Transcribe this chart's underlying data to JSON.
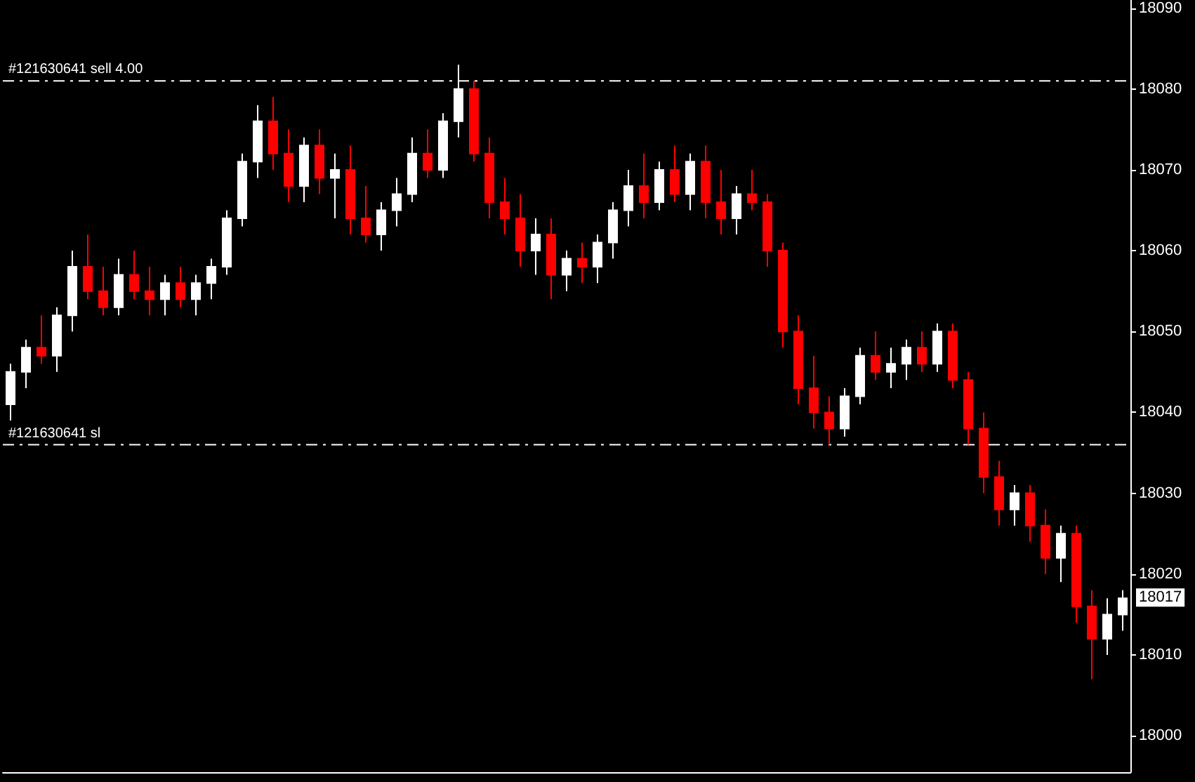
{
  "chart_data": {
    "type": "candlestick",
    "categories": [
      null,
      null,
      null,
      null,
      null,
      null,
      null,
      null,
      null,
      null,
      null,
      null,
      null,
      null,
      null,
      null,
      null,
      null,
      null,
      null,
      null,
      null,
      null,
      null,
      null,
      null,
      null,
      null,
      null,
      null,
      null,
      null,
      null,
      null,
      null,
      null,
      null,
      null,
      null,
      null,
      null,
      null,
      null,
      null,
      null,
      null,
      null,
      null,
      null,
      null,
      null,
      null,
      null,
      null,
      null,
      null,
      null,
      null,
      null,
      null,
      null,
      null,
      null,
      null,
      null,
      null,
      null,
      null,
      null,
      null,
      null,
      null,
      null
    ],
    "ohlc": [
      [
        18041,
        18046,
        18039,
        18045
      ],
      [
        18045,
        18049,
        18043,
        18048
      ],
      [
        18048,
        18052,
        18046,
        18047
      ],
      [
        18047,
        18053,
        18045,
        18052
      ],
      [
        18052,
        18060,
        18050,
        18058
      ],
      [
        18058,
        18062,
        18054,
        18055
      ],
      [
        18055,
        18058,
        18052,
        18053
      ],
      [
        18053,
        18059,
        18052,
        18057
      ],
      [
        18057,
        18060,
        18054,
        18055
      ],
      [
        18055,
        18058,
        18052,
        18054
      ],
      [
        18054,
        18057,
        18052,
        18056
      ],
      [
        18056,
        18058,
        18053,
        18054
      ],
      [
        18054,
        18057,
        18052,
        18056
      ],
      [
        18056,
        18059,
        18054,
        18058
      ],
      [
        18058,
        18065,
        18057,
        18064
      ],
      [
        18064,
        18072,
        18063,
        18071
      ],
      [
        18071,
        18078,
        18069,
        18076
      ],
      [
        18076,
        18079,
        18070,
        18072
      ],
      [
        18072,
        18075,
        18066,
        18068
      ],
      [
        18068,
        18074,
        18066,
        18073
      ],
      [
        18073,
        18075,
        18067,
        18069
      ],
      [
        18069,
        18072,
        18064,
        18070
      ],
      [
        18070,
        18073,
        18062,
        18064
      ],
      [
        18064,
        18068,
        18061,
        18062
      ],
      [
        18062,
        18066,
        18060,
        18065
      ],
      [
        18065,
        18069,
        18063,
        18067
      ],
      [
        18067,
        18074,
        18066,
        18072
      ],
      [
        18072,
        18075,
        18069,
        18070
      ],
      [
        18070,
        18077,
        18069,
        18076
      ],
      [
        18076,
        18083,
        18074,
        18080
      ],
      [
        18080,
        18081,
        18071,
        18072
      ],
      [
        18072,
        18074,
        18064,
        18066
      ],
      [
        18066,
        18069,
        18062,
        18064
      ],
      [
        18064,
        18067,
        18058,
        18060
      ],
      [
        18060,
        18064,
        18057,
        18062
      ],
      [
        18062,
        18064,
        18054,
        18057
      ],
      [
        18057,
        18060,
        18055,
        18059
      ],
      [
        18059,
        18061,
        18056,
        18058
      ],
      [
        18058,
        18062,
        18056,
        18061
      ],
      [
        18061,
        18066,
        18059,
        18065
      ],
      [
        18065,
        18070,
        18063,
        18068
      ],
      [
        18068,
        18072,
        18064,
        18066
      ],
      [
        18066,
        18071,
        18065,
        18070
      ],
      [
        18070,
        18073,
        18066,
        18067
      ],
      [
        18067,
        18072,
        18065,
        18071
      ],
      [
        18071,
        18073,
        18064,
        18066
      ],
      [
        18066,
        18070,
        18062,
        18064
      ],
      [
        18064,
        18068,
        18062,
        18067
      ],
      [
        18067,
        18070,
        18065,
        18066
      ],
      [
        18066,
        18067,
        18058,
        18060
      ],
      [
        18060,
        18061,
        18048,
        18050
      ],
      [
        18050,
        18052,
        18041,
        18043
      ],
      [
        18043,
        18047,
        18038,
        18040
      ],
      [
        18040,
        18042,
        18036,
        18038
      ],
      [
        18038,
        18043,
        18037,
        18042
      ],
      [
        18042,
        18048,
        18041,
        18047
      ],
      [
        18047,
        18050,
        18044,
        18045
      ],
      [
        18045,
        18048,
        18043,
        18046
      ],
      [
        18046,
        18049,
        18044,
        18048
      ],
      [
        18048,
        18050,
        18045,
        18046
      ],
      [
        18046,
        18051,
        18045,
        18050
      ],
      [
        18050,
        18051,
        18043,
        18044
      ],
      [
        18044,
        18045,
        18036,
        18038
      ],
      [
        18038,
        18040,
        18030,
        18032
      ],
      [
        18032,
        18034,
        18026,
        18028
      ],
      [
        18028,
        18031,
        18026,
        18030
      ],
      [
        18030,
        18031,
        18024,
        18026
      ],
      [
        18026,
        18028,
        18020,
        18022
      ],
      [
        18022,
        18026,
        18019,
        18025
      ],
      [
        18025,
        18026,
        18014,
        18016
      ],
      [
        18016,
        18018,
        18007,
        18012
      ],
      [
        18012,
        18017,
        18010,
        18015
      ],
      [
        18015,
        18018,
        18013,
        18017
      ]
    ],
    "ylim": [
      17995.5,
      18091
    ],
    "yticks": [
      18000,
      18010,
      18020,
      18030,
      18040,
      18050,
      18060,
      18070,
      18080,
      18090
    ],
    "tick_labels": "y",
    "grid": false,
    "ref_lines": [
      {
        "axis": "y",
        "value": 18081,
        "label": "#121630641 sell 4.00",
        "color": "#ffffff",
        "line_style": "dashed"
      },
      {
        "axis": "y",
        "value": 18036,
        "label": "#121630641 sl",
        "color": "#ffffff",
        "line_style": "dashed"
      }
    ],
    "annotations": [
      "18017"
    ]
  }
}
